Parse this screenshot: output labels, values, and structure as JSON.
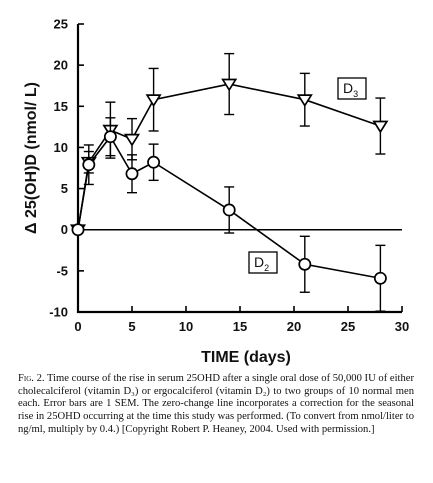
{
  "chart_data": {
    "type": "line",
    "title": "",
    "xlabel": "TIME (days)",
    "ylabel": "Δ 25(OH)D (nmol/ L)",
    "xlim": [
      0,
      30
    ],
    "ylim": [
      -10,
      25
    ],
    "x_ticks": [
      "0",
      "5",
      "10",
      "15",
      "20",
      "25",
      "30"
    ],
    "y_ticks": [
      "-10",
      "-5",
      "0",
      "5",
      "10",
      "15",
      "20",
      "25"
    ],
    "zero_line": true,
    "grid": false,
    "series": [
      {
        "name": "D3",
        "marker": "triangle-down",
        "x": [
          0,
          1,
          3,
          5,
          7,
          14,
          21,
          28
        ],
        "y": [
          0,
          8.2,
          12.1,
          11,
          15.8,
          17.7,
          15.8,
          12.6
        ],
        "err": [
          0,
          1.3,
          3.4,
          2.5,
          3.8,
          3.7,
          3.2,
          3.4
        ]
      },
      {
        "name": "D2",
        "marker": "circle",
        "x": [
          0,
          1,
          3,
          5,
          7,
          14,
          21,
          28
        ],
        "y": [
          0,
          7.9,
          11.3,
          6.8,
          8.2,
          2.4,
          -4.2,
          -5.9
        ],
        "err": [
          0,
          2.4,
          2.3,
          2.3,
          2.2,
          2.8,
          3.4,
          4
        ]
      }
    ],
    "legend_labels": [
      {
        "series": "D3",
        "main": "D",
        "sub": "3"
      },
      {
        "series": "D2",
        "main": "D",
        "sub": "2"
      }
    ]
  },
  "caption": {
    "label": "Fig. 2.",
    "text": " Time course of the rise in serum 25OHD after a single oral dose of 50,000 IU of either cholecalciferol (vitamin D₃) or ergocalciferol (vitamin D₂) to two groups of 10 normal men each. Error bars are 1 SEM. The zero-change line incorporates a correction for the seasonal rise in 25OHD occurring at the time this study was performed. (To convert from nmol/liter to ng/ml, multiply by 0.4.) [Copyright Robert P. Heaney, 2004. Used with permission.]"
  }
}
